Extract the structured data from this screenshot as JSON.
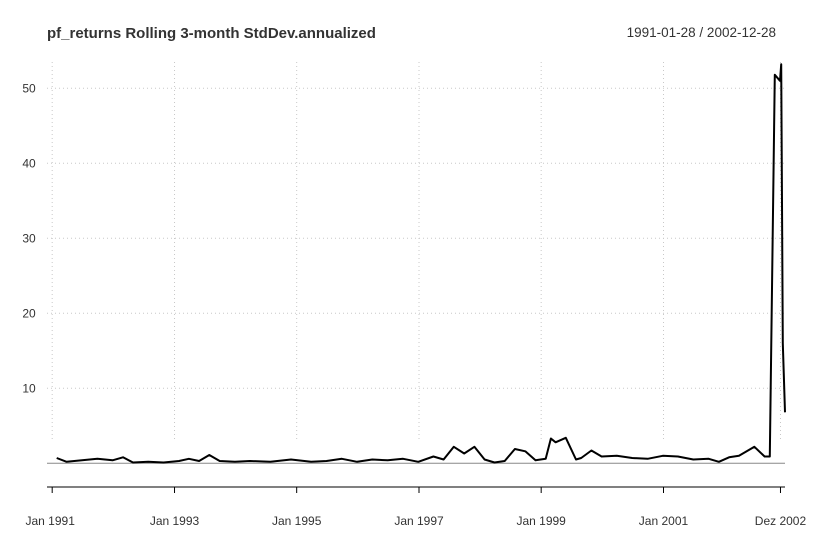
{
  "chart_data": {
    "type": "line",
    "title": "pf_returns Rolling 3-month StdDev.annualized",
    "date_range": "1991-01-28 / 2002-12-28",
    "xlabel": "",
    "ylabel": "",
    "x_tick_labels": [
      "Jan 1991",
      "Jan 1993",
      "Jan 1995",
      "Jan 1997",
      "Jan 1999",
      "Jan 2001",
      "Dez 2002"
    ],
    "y_ticks": [
      10,
      20,
      30,
      40,
      50
    ],
    "ylim": [
      -2.5,
      53.5
    ],
    "xlim": [
      "1990-12-01",
      "2002-12-28"
    ],
    "grid": true,
    "series": [
      {
        "color": "#000000",
        "x": [
          "1991-01-28",
          "1991-03-28",
          "1991-06-28",
          "1991-09-28",
          "1991-12-28",
          "1992-02-28",
          "1992-04-28",
          "1992-07-28",
          "1992-10-28",
          "1993-01-28",
          "1993-03-28",
          "1993-05-28",
          "1993-07-28",
          "1993-09-28",
          "1993-12-28",
          "1994-03-28",
          "1994-07-28",
          "1994-11-28",
          "1995-03-28",
          "1995-06-28",
          "1995-09-28",
          "1995-12-28",
          "1996-03-28",
          "1996-06-28",
          "1996-09-28",
          "1996-12-28",
          "1997-03-28",
          "1997-05-28",
          "1997-07-28",
          "1997-09-28",
          "1997-11-28",
          "1998-01-28",
          "1998-03-28",
          "1998-05-28",
          "1998-07-28",
          "1998-09-28",
          "1998-11-28",
          "1999-01-28",
          "1999-02-28",
          "1999-03-28",
          "1999-05-28",
          "1999-07-28",
          "1999-08-28",
          "1999-10-28",
          "1999-12-28",
          "2000-03-28",
          "2000-06-28",
          "2000-09-28",
          "2000-12-28",
          "2001-03-28",
          "2001-06-28",
          "2001-09-28",
          "2001-11-28",
          "2002-01-28",
          "2002-03-28",
          "2002-06-28",
          "2002-08-28",
          "2002-09-28",
          "2002-10-28",
          "2002-11-28",
          "2002-12-05",
          "2002-12-15",
          "2002-12-28"
        ],
        "values": [
          0.7,
          0.2,
          0.4,
          0.6,
          0.4,
          0.8,
          0.1,
          0.2,
          0.1,
          0.3,
          0.6,
          0.3,
          1.1,
          0.3,
          0.2,
          0.3,
          0.2,
          0.5,
          0.2,
          0.3,
          0.6,
          0.2,
          0.5,
          0.4,
          0.6,
          0.2,
          0.9,
          0.5,
          2.2,
          1.3,
          2.2,
          0.5,
          0.1,
          0.3,
          1.9,
          1.6,
          0.4,
          0.6,
          3.3,
          2.8,
          3.4,
          0.5,
          0.7,
          1.7,
          0.9,
          1.0,
          0.7,
          0.6,
          1.0,
          0.9,
          0.5,
          0.6,
          0.2,
          0.8,
          1.0,
          2.2,
          0.9,
          0.9,
          51.8,
          51.0,
          53.2,
          16.0,
          6.8
        ]
      }
    ]
  }
}
